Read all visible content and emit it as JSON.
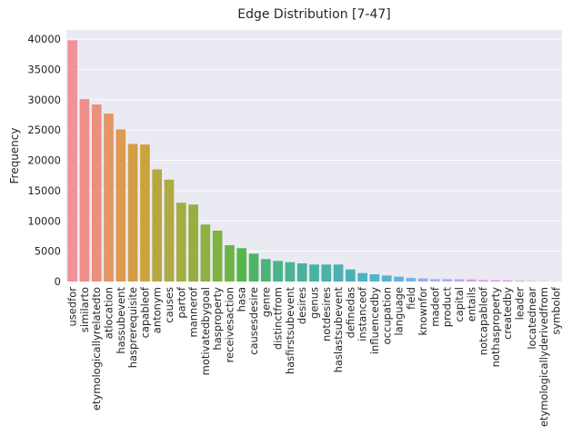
{
  "chart_data": {
    "type": "bar",
    "title": "Edge Distribution [7-47]",
    "xlabel": "",
    "ylabel": "Frequency",
    "ylim": [
      0,
      41500
    ],
    "yticks": [
      0,
      5000,
      10000,
      15000,
      20000,
      25000,
      30000,
      35000,
      40000
    ],
    "grid": true,
    "categories": [
      "usedfor",
      "similarto",
      "etymologicallyrelatedto",
      "atlocation",
      "hassubevent",
      "hasprerequisite",
      "capableof",
      "antonym",
      "causes",
      "partof",
      "mannerof",
      "motivatedbygoal",
      "hasproperty",
      "receivesaction",
      "hasa",
      "causesdesire",
      "genre",
      "distinctfrom",
      "hasfirstsubevent",
      "desires",
      "genus",
      "notdesires",
      "haslastsubevent",
      "definedas",
      "instanceof",
      "influencedby",
      "occupation",
      "language",
      "field",
      "knownfor",
      "madeof",
      "product",
      "capital",
      "entails",
      "notcapableof",
      "nothasproperty",
      "createdby",
      "leader",
      "locatednear",
      "etymologicallyderivedfrom",
      "symbolof"
    ],
    "values": [
      39800,
      30100,
      29200,
      27700,
      25100,
      22700,
      22600,
      18500,
      16800,
      13000,
      12700,
      9400,
      8400,
      6000,
      5500,
      4600,
      3700,
      3400,
      3200,
      3000,
      2800,
      2800,
      2800,
      2000,
      1400,
      1200,
      1000,
      800,
      600,
      500,
      400,
      400,
      380,
      340,
      250,
      220,
      200,
      120,
      80,
      50,
      30
    ],
    "colors": [
      "#f0919c",
      "#ef8f8c",
      "#ec8f7b",
      "#e59566",
      "#de9a4f",
      "#d29e46",
      "#c9a33c",
      "#b8a73f",
      "#aeab42",
      "#a3ad40",
      "#97ae41",
      "#8db143",
      "#80b244",
      "#6fb347",
      "#55b64a",
      "#4db463",
      "#4cb37b",
      "#4ab488",
      "#4ab493",
      "#4ab19b",
      "#4bb1a3",
      "#4cb1aa",
      "#4db1b0",
      "#4ab0b6",
      "#4fb2bf",
      "#53b3c8",
      "#56b1cf",
      "#63b1df",
      "#7cb2ea",
      "#8fb1f0",
      "#a4aef2",
      "#b7a8f1",
      "#c6a4f1",
      "#d39ef1",
      "#dd99ee",
      "#e394ec",
      "#e991e6",
      "#ee8fdd",
      "#f08fd3",
      "#f08fc9",
      "#f190bc"
    ]
  }
}
